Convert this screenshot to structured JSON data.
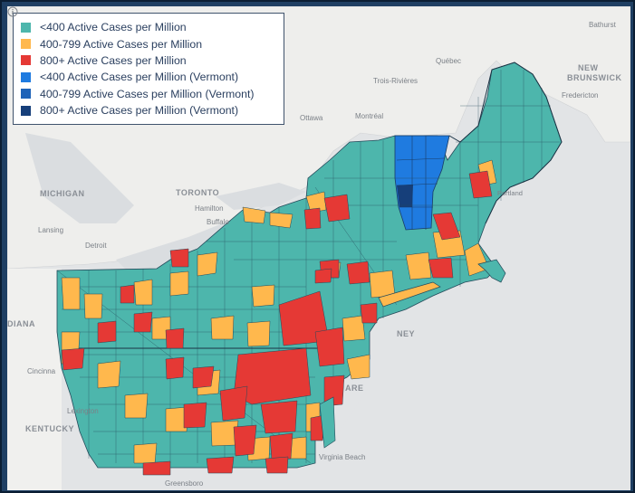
{
  "legend": {
    "items": [
      {
        "label": "<400 Active Cases per Million",
        "color": "#4db6ac"
      },
      {
        "label": "400-799 Active Cases per Million",
        "color": "#ffb84d"
      },
      {
        "label": "800+ Active Cases per Million",
        "color": "#e53935"
      },
      {
        "label": "<400 Active Cases per Million (Vermont)",
        "color": "#1f7be0"
      },
      {
        "label": "400-799 Active Cases per Million (Vermont)",
        "color": "#1e63b8"
      },
      {
        "label": "800+ Active Cases per Million (Vermont)",
        "color": "#163f7a"
      }
    ]
  },
  "map_labels": {
    "new_brunswick_1": "NEW",
    "new_brunswick_2": "BRUNSWICK",
    "bathurst": "Bathurst",
    "quebec": "Québec",
    "trois_rivieres": "Trois-Rivières",
    "ottawa": "Ottawa",
    "montreal": "Montréal",
    "fredericton": "Fredericton",
    "michigan": "MICHIGAN",
    "toronto": "TORONTO",
    "hamilton": "Hamilton",
    "buffalo": "Buffalo",
    "lansing": "Lansing",
    "detroit": "Detroit",
    "portland": "Portland",
    "indiana": "DIANA",
    "cincinnati": "Cincinna",
    "kentucky": "KENTUCKY",
    "lexington": "Lexington",
    "ney": "NEY",
    "are": "ARE",
    "virginia_beach": "Virginia Beach",
    "greensboro": "Greensboro"
  },
  "colors": {
    "low": "#4db6ac",
    "mid": "#ffb84d",
    "high": "#e53935",
    "vt_low": "#1f7be0",
    "vt_mid": "#1e63b8",
    "vt_high": "#163f7a",
    "water": "#e2e4e6",
    "land": "#f2f2f0",
    "frame": "#1f3f63"
  }
}
